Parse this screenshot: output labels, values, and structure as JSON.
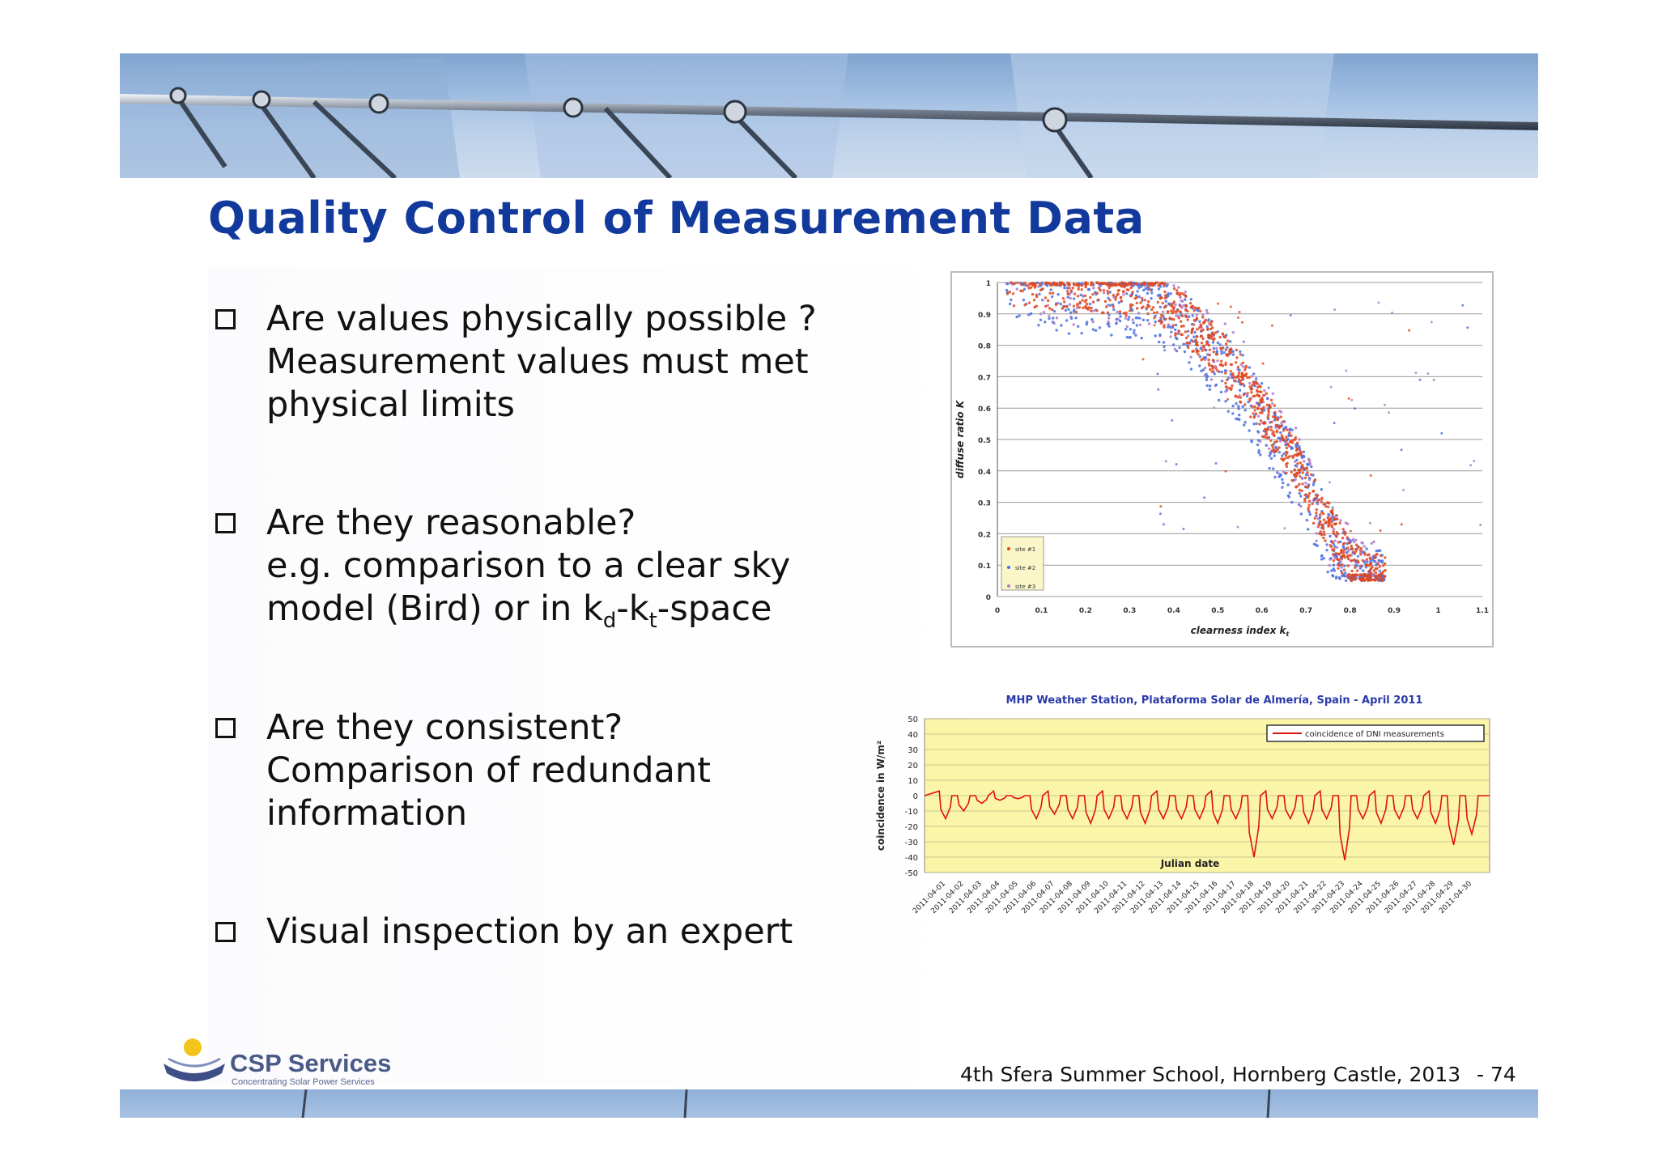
{
  "slide": {
    "title": "Quality Control of Measurement Data",
    "footer": "4th Sfera Summer School, Hornberg Castle, 2013",
    "page_number": "- 74"
  },
  "logo": {
    "name": "CSP Services",
    "tagline": "Concentrating Solar Power Services"
  },
  "bullets": [
    {
      "lines": [
        "Are values physically possible ?",
        "Measurement values must met",
        "physical limits"
      ]
    },
    {
      "lines": [
        "Are they reasonable?",
        "e.g. comparison to a clear sky"
      ],
      "line3": {
        "a": "model (Bird) or in k",
        "sub1": "d",
        "b": "-k",
        "sub2": "t",
        "c": "-space"
      }
    },
    {
      "lines": [
        "Are they consistent?",
        "Comparison of redundant",
        "information"
      ]
    },
    {
      "lines": [
        "Visual inspection by an expert"
      ]
    }
  ],
  "chart_data": [
    {
      "type": "scatter",
      "title": "",
      "xlabel": "clearness index k",
      "xlabel_sub": "t",
      "ylabel": "diffuse ratio K",
      "xlim": [
        0,
        1.1
      ],
      "ylim": [
        0,
        1
      ],
      "x_ticks": [
        "0",
        "0.1",
        "0.2",
        "0.3",
        "0.4",
        "0.5",
        "0.6",
        "0.7",
        "0.8",
        "0.9",
        "1",
        "1.1"
      ],
      "y_ticks": [
        "0",
        "0.1",
        "0.2",
        "0.3",
        "0.4",
        "0.5",
        "0.6",
        "0.7",
        "0.8",
        "0.9",
        "1"
      ],
      "grid": "horizontal",
      "legend_position": "bottom-left",
      "series": [
        {
          "name": "site #1",
          "color": "#e0471f"
        },
        {
          "name": "site #2",
          "color": "#4a6fe0"
        },
        {
          "name": "site #3",
          "color": "#b07acb"
        }
      ],
      "points_summary": [
        {
          "x": 0.05,
          "y": 1.0
        },
        {
          "x": 0.2,
          "y": 0.98
        },
        {
          "x": 0.35,
          "y": 0.97
        },
        {
          "x": 0.45,
          "y": 0.85
        },
        {
          "x": 0.55,
          "y": 0.7
        },
        {
          "x": 0.62,
          "y": 0.55
        },
        {
          "x": 0.68,
          "y": 0.42
        },
        {
          "x": 0.72,
          "y": 0.3
        },
        {
          "x": 0.76,
          "y": 0.2
        },
        {
          "x": 0.8,
          "y": 0.1
        },
        {
          "x": 0.84,
          "y": 0.06
        }
      ]
    },
    {
      "type": "line",
      "title": "MHP Weather Station, Plataforma Solar de Almería, Spain  -  April 2011",
      "xlabel": "Julian date",
      "ylabel": "coincidence in W/m²",
      "ylim": [
        -50,
        50
      ],
      "y_ticks": [
        "50",
        "40",
        "30",
        "20",
        "10",
        "0",
        "-10",
        "-20",
        "-30",
        "-40",
        "-50"
      ],
      "categories": [
        "2011-04-01",
        "2011-04-02",
        "2011-04-03",
        "2011-04-04",
        "2011-04-05",
        "2011-04-06",
        "2011-04-07",
        "2011-04-08",
        "2011-04-09",
        "2011-04-10",
        "2011-04-11",
        "2011-04-12",
        "2011-04-13",
        "2011-04-14",
        "2011-04-15",
        "2011-04-16",
        "2011-04-17",
        "2011-04-18",
        "2011-04-19",
        "2011-04-20",
        "2011-04-21",
        "2011-04-22",
        "2011-04-23",
        "2011-04-24",
        "2011-04-25",
        "2011-04-26",
        "2011-04-27",
        "2011-04-28",
        "2011-04-29",
        "2011-04-30"
      ],
      "series": [
        {
          "name": "coincidence of DNI measurements",
          "color": "#e01010",
          "daily_min": [
            -15,
            -10,
            -5,
            -3,
            -2,
            -15,
            -12,
            -15,
            -18,
            -15,
            -15,
            -18,
            -15,
            -15,
            -15,
            -18,
            -15,
            -40,
            -15,
            -15,
            -18,
            -15,
            -42,
            -15,
            -18,
            -15,
            -15,
            -18,
            -32,
            -25
          ]
        }
      ],
      "plot_background": "#fbf5a8",
      "legend_position": "top-right"
    }
  ]
}
